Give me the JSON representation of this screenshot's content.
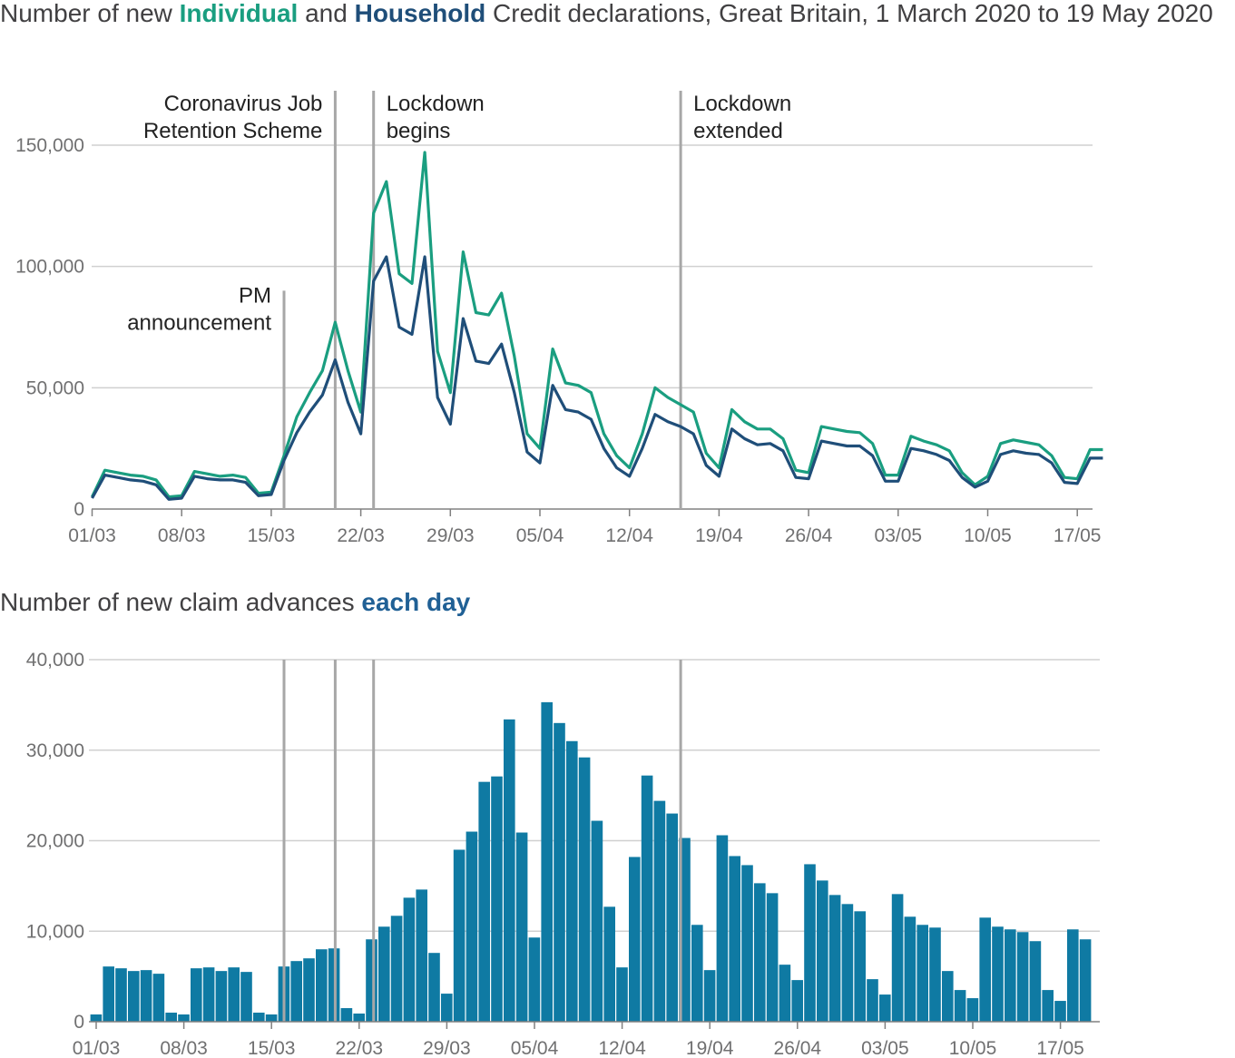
{
  "top_title": {
    "prefix": "Number of new ",
    "individual": "Individual",
    "middle": " and ",
    "household": "Household",
    "suffix": " Credit declarations, Great Britain, 1 March 2020 to 19 May 2020"
  },
  "bottom_title": {
    "prefix": "Number of new claim advances ",
    "highlight": "each day"
  },
  "colors": {
    "individual": "#1a9e80",
    "household": "#1f4e79",
    "bars": "#0f7aa3",
    "event_line": "#a7a7a7",
    "grid": "#d0d0d0"
  },
  "chart_data": [
    {
      "type": "line",
      "title": "Number of new Individual and Household Credit declarations, Great Britain, 1 March 2020 to 19 May 2020",
      "x_tick_labels": [
        "01/03",
        "08/03",
        "15/03",
        "22/03",
        "29/03",
        "05/04",
        "12/04",
        "19/04",
        "26/04",
        "03/05",
        "10/05",
        "17/05"
      ],
      "y_tick_labels": [
        "0",
        "50,000",
        "100,000",
        "150,000"
      ],
      "ylim": [
        0,
        150000
      ],
      "grid": true,
      "x_start": "01/03",
      "x_end": "19/05",
      "series": [
        {
          "name": "Individual",
          "values": [
            5000,
            16000,
            15000,
            14000,
            13500,
            12000,
            5000,
            5500,
            15500,
            14500,
            13500,
            14000,
            13000,
            6500,
            7000,
            22000,
            38000,
            48000,
            57000,
            77000,
            57000,
            40000,
            122000,
            135000,
            97000,
            93000,
            147000,
            65000,
            48000,
            106000,
            81000,
            80000,
            89000,
            63000,
            31000,
            25000,
            66000,
            52000,
            51000,
            48000,
            31000,
            22000,
            17000,
            31000,
            50000,
            46000,
            43000,
            40000,
            23000,
            17000,
            41000,
            36000,
            33000,
            33000,
            29000,
            16000,
            15000,
            34000,
            33000,
            32000,
            31500,
            27000,
            14000,
            14000,
            30000,
            28000,
            26500,
            24000,
            15000,
            10000,
            13500,
            27000,
            28500,
            27500,
            26500,
            22000,
            13000,
            12500,
            24500,
            24500
          ]
        },
        {
          "name": "Household",
          "values": [
            4500,
            14000,
            13000,
            12000,
            11500,
            10000,
            4000,
            4500,
            13500,
            12500,
            12000,
            12000,
            11000,
            5500,
            6000,
            20000,
            31500,
            40000,
            47000,
            61500,
            44000,
            31000,
            94000,
            104000,
            75000,
            72000,
            104000,
            46000,
            35000,
            78500,
            61000,
            60000,
            68000,
            48000,
            23500,
            19000,
            51000,
            41000,
            40000,
            37000,
            25000,
            17000,
            13500,
            25000,
            39000,
            36000,
            34000,
            31000,
            18000,
            13500,
            33000,
            29000,
            26500,
            27000,
            24000,
            13000,
            12500,
            28000,
            27000,
            26000,
            26000,
            22000,
            11500,
            11500,
            25000,
            24000,
            22500,
            20000,
            13000,
            9000,
            11500,
            22500,
            24000,
            23000,
            22500,
            19000,
            11000,
            10500,
            21000,
            21000
          ]
        }
      ],
      "annotations": [
        {
          "lines": [
            "PM",
            "announcement"
          ],
          "date": "16/03",
          "value": 90000
        },
        {
          "lines": [
            "Coronavirus Job",
            "Retention Scheme"
          ],
          "date": "20/03"
        },
        {
          "lines": [
            "Lockdown",
            "begins"
          ],
          "date": "23/03"
        },
        {
          "lines": [
            "Lockdown",
            "extended"
          ],
          "date": "16/04"
        }
      ]
    },
    {
      "type": "bar",
      "title": "Number of new claim advances each day",
      "x_tick_labels": [
        "01/03",
        "08/03",
        "15/03",
        "22/03",
        "29/03",
        "05/04",
        "12/04",
        "19/04",
        "26/04",
        "03/05",
        "10/05",
        "17/05"
      ],
      "y_tick_labels": [
        "0",
        "10,000",
        "20,000",
        "30,000",
        "40,000"
      ],
      "ylim": [
        0,
        40000
      ],
      "grid": true,
      "values": [
        800,
        6100,
        5900,
        5600,
        5700,
        5300,
        1000,
        800,
        5900,
        6000,
        5600,
        6000,
        5500,
        1000,
        800,
        6100,
        6700,
        7000,
        8000,
        8100,
        1500,
        900,
        9100,
        10500,
        11700,
        13700,
        14600,
        7600,
        3100,
        19000,
        21000,
        26500,
        27100,
        33400,
        20900,
        9300,
        35300,
        33000,
        31000,
        29200,
        22200,
        12700,
        6000,
        18200,
        27200,
        24400,
        23000,
        20300,
        10700,
        5700,
        20600,
        18300,
        17300,
        15300,
        14200,
        6300,
        4600,
        17400,
        15600,
        14000,
        13000,
        12200,
        4700,
        3000,
        14100,
        11600,
        10700,
        10400,
        5600,
        3500,
        2600,
        11500,
        10500,
        10200,
        9900,
        8900,
        3500,
        2300,
        10200,
        9100
      ],
      "event_dates": [
        "16/03",
        "20/03",
        "23/03",
        "16/04"
      ]
    }
  ]
}
